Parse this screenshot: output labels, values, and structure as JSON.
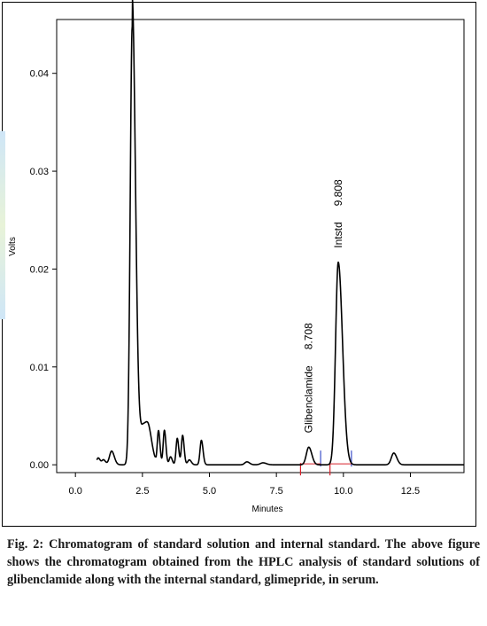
{
  "chart_data": {
    "type": "line",
    "xlabel": "Minutes",
    "ylabel": "Volts",
    "xlim": [
      -0.7,
      14.5
    ],
    "ylim": [
      -0.0008,
      0.0455
    ],
    "x_ticks": [
      "0.0",
      "2.5",
      "5.0",
      "7.5",
      "10.0",
      "12.5"
    ],
    "y_ticks": [
      "0.00",
      "0.01",
      "0.02",
      "0.03",
      "0.04"
    ],
    "baseline": 0.0,
    "peaks": [
      {
        "rt": 0.85,
        "height": 0.0007,
        "width": 0.06
      },
      {
        "rt": 1.05,
        "height": 0.0005,
        "width": 0.06
      },
      {
        "rt": 1.35,
        "height": 0.0014,
        "width": 0.08
      },
      {
        "rt": 2.12,
        "height": 0.0448,
        "width": 0.075
      },
      {
        "rt": 2.55,
        "height": 0.003,
        "width": 0.12
      },
      {
        "rt": 2.75,
        "height": 0.0022,
        "width": 0.1
      },
      {
        "rt": 3.1,
        "height": 0.0034,
        "width": 0.045
      },
      {
        "rt": 3.32,
        "height": 0.0035,
        "width": 0.045
      },
      {
        "rt": 3.55,
        "height": 0.0008,
        "width": 0.05
      },
      {
        "rt": 3.8,
        "height": 0.0027,
        "width": 0.045
      },
      {
        "rt": 4.0,
        "height": 0.003,
        "width": 0.045
      },
      {
        "rt": 4.25,
        "height": 0.0005,
        "width": 0.06
      },
      {
        "rt": 4.7,
        "height": 0.0025,
        "width": 0.05
      },
      {
        "rt": 6.4,
        "height": 0.0003,
        "width": 0.08
      },
      {
        "rt": 7.0,
        "height": 0.0002,
        "width": 0.1
      },
      {
        "rt": 8.708,
        "height": 0.0018,
        "width": 0.09
      },
      {
        "rt": 9.808,
        "height": 0.0207,
        "width": 0.1
      },
      {
        "rt": 11.88,
        "height": 0.0012,
        "width": 0.09
      }
    ],
    "peak_labels": [
      {
        "name": "Glibenclamide",
        "rt": "8.708"
      },
      {
        "name": "Intstd",
        "rt": "9.808"
      }
    ],
    "integration_markers": [
      {
        "x": 8.4,
        "color": "#d8202a"
      },
      {
        "x": 9.15,
        "color": "#3a4cc8"
      },
      {
        "x": 9.5,
        "color": "#d8202a"
      },
      {
        "x": 10.3,
        "color": "#3a4cc8"
      }
    ],
    "series_color": "#000000",
    "grid": false
  },
  "caption": {
    "lead": "Fig. 2: Chromatogram of standard solution and internal standard.",
    "body": "The above figure shows the chromatogram obtained from the HPLC analysis of standard solutions of glibenclamide along with the internal standard, glimepride, in serum."
  }
}
